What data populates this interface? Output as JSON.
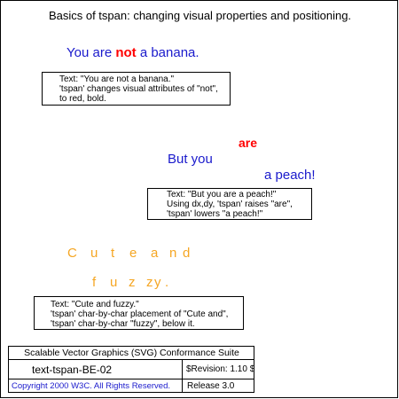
{
  "page_title": "Basics of tspan: changing visual properties and positioning.",
  "section1": {
    "text_before": "You are ",
    "text_emphasis": "not",
    "text_after": " a banana.",
    "description": [
      "Text: \"You are not a banana.\"",
      "'tspan' changes visual attributes of \"not\",",
      "to red, bold."
    ]
  },
  "section2": {
    "word_are": "are",
    "line_but_you": "But you",
    "line_a_peach": "a peach!",
    "description": [
      "Text: \"But you are a peach!\"",
      "Using dx,dy, 'tspan' raises \"are\",",
      "'tspan' lowers \"a peach!\""
    ]
  },
  "section3": {
    "line1_chars": [
      "C",
      "u",
      "t",
      "e",
      "a",
      "n",
      "d"
    ],
    "line2_chars": [
      "f",
      "u",
      "z",
      "z",
      "y",
      "."
    ],
    "description": [
      "Text: \"Cute and fuzzy.\"",
      "'tspan' char-by-char placement of \"Cute and\",",
      "'tspan' char-by-char \"fuzzy\", below it."
    ]
  },
  "footer": {
    "suite": "Scalable Vector Graphics (SVG) Conformance Suite",
    "test_id": "text-tspan-BE-02",
    "revision": "$Revision: 1.10 $",
    "copyright": "Copyright 2000 W3C. All Rights Reserved.",
    "release": "Release 3.0"
  },
  "colors": {
    "blue_text": "#1a1acc",
    "red_emphasis": "#ff0000",
    "orange_text": "#f5a623"
  }
}
